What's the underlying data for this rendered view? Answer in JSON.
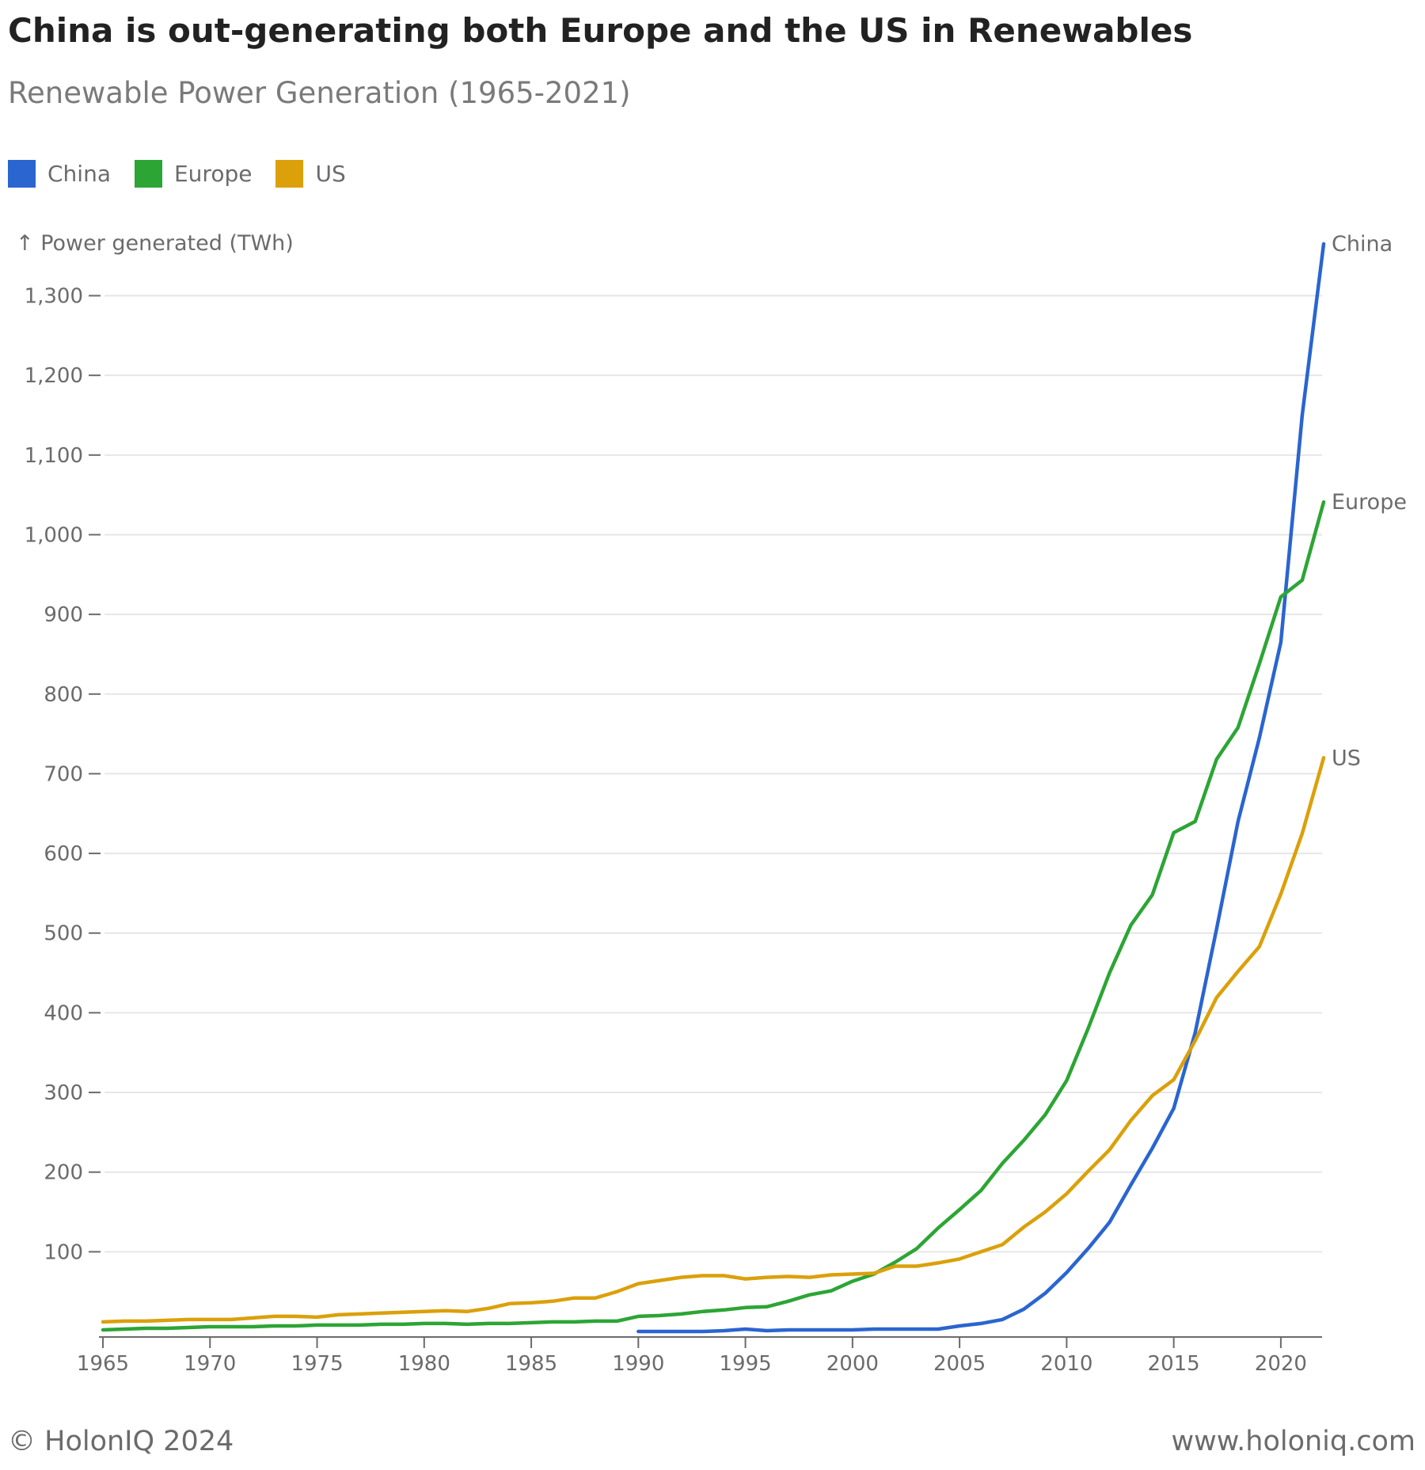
{
  "header": {
    "title": "China is out-generating both Europe and the US in Renewables",
    "subtitle": "Renewable Power Generation (1965-2021)"
  },
  "legend": {
    "items": [
      {
        "label": "China",
        "color": "#2a65d0"
      },
      {
        "label": "Europe",
        "color": "#2ca534"
      },
      {
        "label": "US",
        "color": "#dba00a"
      }
    ]
  },
  "footer": {
    "left": "© HolonIQ 2024",
    "right": "www.holoniq.com"
  },
  "chart_data": {
    "type": "line",
    "title": "China is out-generating both Europe and the US in Renewables",
    "subtitle": "Renewable Power Generation (1965-2021)",
    "ylabel": "↑ Power generated (TWh)",
    "xlabel": "",
    "xlim": [
      1965,
      2022
    ],
    "ylim": [
      0,
      1380
    ],
    "x_ticks": [
      1965,
      1970,
      1975,
      1980,
      1985,
      1990,
      1995,
      2000,
      2005,
      2010,
      2015,
      2020
    ],
    "y_ticks": [
      100,
      200,
      300,
      400,
      500,
      600,
      700,
      800,
      900,
      1000,
      1100,
      1200,
      1300
    ],
    "y_tick_labels": [
      "100",
      "200",
      "300",
      "400",
      "500",
      "600",
      "700",
      "800",
      "900",
      "1,000",
      "1,100",
      "1,200",
      "1,300"
    ],
    "grid": true,
    "legend_placement": "top-left",
    "series": [
      {
        "name": "China",
        "color": "#2a65d0",
        "end_label": "China",
        "x": [
          1990,
          1991,
          1992,
          1993,
          1994,
          1995,
          1996,
          1997,
          1998,
          1999,
          2000,
          2001,
          2002,
          2003,
          2004,
          2005,
          2006,
          2007,
          2008,
          2009,
          2010,
          2011,
          2012,
          2013,
          2014,
          2015,
          2016,
          2017,
          2018,
          2019,
          2020,
          2021,
          2022
        ],
        "y": [
          0,
          0,
          0,
          0,
          1,
          3,
          1,
          2,
          2,
          2,
          2,
          3,
          3,
          3,
          3,
          7,
          10,
          15,
          28,
          48,
          74,
          104,
          137,
          184,
          230,
          280,
          375,
          505,
          640,
          745,
          865,
          1150,
          1365
        ]
      },
      {
        "name": "Europe",
        "color": "#2ca534",
        "end_label": "Europe",
        "x": [
          1965,
          1966,
          1967,
          1968,
          1969,
          1970,
          1971,
          1972,
          1973,
          1974,
          1975,
          1976,
          1977,
          1978,
          1979,
          1980,
          1981,
          1982,
          1983,
          1984,
          1985,
          1986,
          1987,
          1988,
          1989,
          1990,
          1991,
          1992,
          1993,
          1994,
          1995,
          1996,
          1997,
          1998,
          1999,
          2000,
          2001,
          2002,
          2003,
          2004,
          2005,
          2006,
          2007,
          2008,
          2009,
          2010,
          2011,
          2012,
          2013,
          2014,
          2015,
          2016,
          2017,
          2018,
          2019,
          2020,
          2021,
          2022
        ],
        "y": [
          2,
          3,
          4,
          4,
          5,
          6,
          6,
          6,
          7,
          7,
          8,
          8,
          8,
          9,
          9,
          10,
          10,
          9,
          10,
          10,
          11,
          12,
          12,
          13,
          13,
          19,
          20,
          22,
          25,
          27,
          30,
          31,
          38,
          46,
          51,
          63,
          72,
          87,
          104,
          130,
          153,
          177,
          211,
          240,
          272,
          315,
          380,
          450,
          510,
          548,
          626,
          640,
          718,
          758,
          838,
          922,
          943,
          1041
        ]
      },
      {
        "name": "US",
        "color": "#dba00a",
        "end_label": "US",
        "x": [
          1965,
          1966,
          1967,
          1968,
          1969,
          1970,
          1971,
          1972,
          1973,
          1974,
          1975,
          1976,
          1977,
          1978,
          1979,
          1980,
          1981,
          1982,
          1983,
          1984,
          1985,
          1986,
          1987,
          1988,
          1989,
          1990,
          1991,
          1992,
          1993,
          1994,
          1995,
          1996,
          1997,
          1998,
          1999,
          2000,
          2001,
          2002,
          2003,
          2004,
          2005,
          2006,
          2007,
          2008,
          2009,
          2010,
          2011,
          2012,
          2013,
          2014,
          2015,
          2016,
          2017,
          2018,
          2019,
          2020,
          2021,
          2022
        ],
        "y": [
          12,
          13,
          13,
          14,
          15,
          15,
          15,
          17,
          19,
          19,
          18,
          21,
          22,
          23,
          24,
          25,
          26,
          25,
          29,
          35,
          36,
          38,
          42,
          42,
          50,
          60,
          64,
          68,
          70,
          70,
          66,
          68,
          69,
          68,
          71,
          72,
          73,
          82,
          82,
          86,
          91,
          100,
          109,
          131,
          150,
          173,
          201,
          228,
          265,
          296,
          316,
          365,
          419,
          452,
          483,
          549,
          625,
          720
        ]
      }
    ]
  }
}
